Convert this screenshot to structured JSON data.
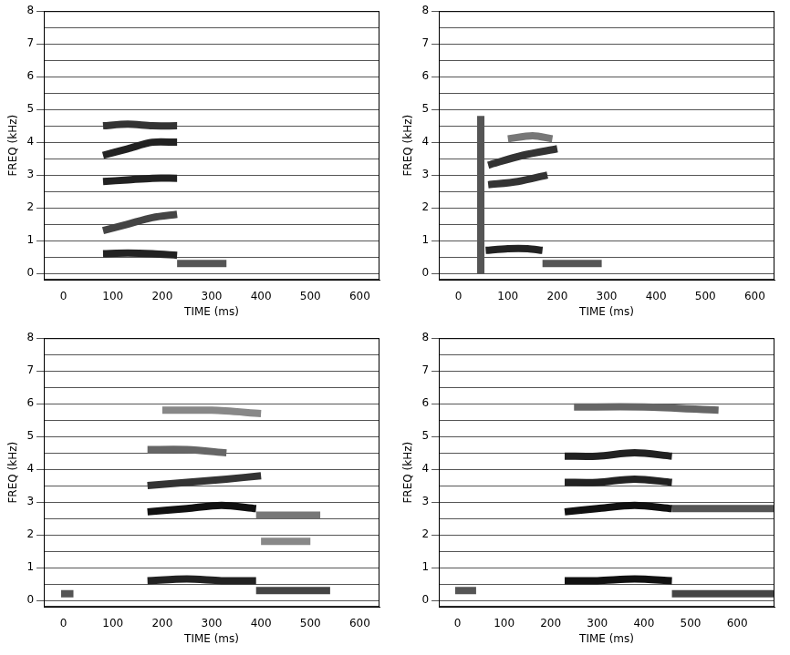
{
  "chart_data": [
    {
      "type": "line",
      "x_label": "TIME (ms)",
      "y_label": "FREQ (kHz)",
      "xlim": [
        -40,
        640
      ],
      "ylim": [
        -0.2,
        8
      ],
      "xticks": [
        0,
        100,
        200,
        300,
        400,
        500,
        600
      ],
      "yticks": [
        0,
        1,
        2,
        3,
        4,
        5,
        6,
        7,
        8
      ],
      "grid": true,
      "series": [
        {
          "color": "#222222",
          "x": [
            80,
            130,
            180,
            230
          ],
          "values": [
            0.6,
            0.62,
            0.6,
            0.55
          ]
        },
        {
          "color": "#555555",
          "x": [
            230,
            280,
            330
          ],
          "values": [
            0.3,
            0.3,
            0.3
          ]
        },
        {
          "color": "#444444",
          "x": [
            80,
            130,
            180,
            230
          ],
          "values": [
            1.3,
            1.5,
            1.7,
            1.8
          ]
        },
        {
          "color": "#222222",
          "x": [
            80,
            130,
            180,
            230
          ],
          "values": [
            2.8,
            2.85,
            2.9,
            2.9
          ]
        },
        {
          "color": "#222222",
          "x": [
            80,
            130,
            180,
            230
          ],
          "values": [
            3.6,
            3.8,
            4.0,
            4.0
          ]
        },
        {
          "color": "#333333",
          "x": [
            80,
            130,
            180,
            230
          ],
          "values": [
            4.5,
            4.55,
            4.5,
            4.5
          ]
        }
      ]
    },
    {
      "type": "line",
      "x_label": "TIME (ms)",
      "y_label": "FREQ (kHz)",
      "xlim": [
        -40,
        640
      ],
      "ylim": [
        -0.2,
        8
      ],
      "xticks": [
        0,
        100,
        200,
        300,
        400,
        500,
        600
      ],
      "yticks": [
        0,
        1,
        2,
        3,
        4,
        5,
        6,
        7,
        8
      ],
      "grid": true,
      "series": [
        {
          "color": "#555555",
          "x": [
            45,
            45
          ],
          "values": [
            0,
            4.8
          ]
        },
        {
          "color": "#222222",
          "x": [
            55,
            100,
            140,
            170
          ],
          "values": [
            0.7,
            0.75,
            0.75,
            0.7
          ]
        },
        {
          "color": "#555555",
          "x": [
            170,
            230,
            290
          ],
          "values": [
            0.3,
            0.3,
            0.3
          ]
        },
        {
          "color": "#333333",
          "x": [
            60,
            120,
            180
          ],
          "values": [
            2.7,
            2.8,
            3.0
          ]
        },
        {
          "color": "#333333",
          "x": [
            60,
            130,
            200
          ],
          "values": [
            3.3,
            3.6,
            3.8
          ]
        },
        {
          "color": "#777777",
          "x": [
            100,
            150,
            190
          ],
          "values": [
            4.1,
            4.2,
            4.1
          ]
        }
      ]
    },
    {
      "type": "line",
      "x_label": "TIME (ms)",
      "y_label": "FREQ (kHz)",
      "xlim": [
        -40,
        640
      ],
      "ylim": [
        -0.2,
        8
      ],
      "xticks": [
        0,
        100,
        200,
        300,
        400,
        500,
        600
      ],
      "yticks": [
        0,
        1,
        2,
        3,
        4,
        5,
        6,
        7,
        8
      ],
      "grid": true,
      "series": [
        {
          "color": "#555555",
          "x": [
            -5,
            20
          ],
          "values": [
            0.2,
            0.2
          ]
        },
        {
          "color": "#222222",
          "x": [
            170,
            250,
            320,
            390
          ],
          "values": [
            0.6,
            0.65,
            0.6,
            0.6
          ]
        },
        {
          "color": "#444444",
          "x": [
            390,
            460,
            540
          ],
          "values": [
            0.3,
            0.3,
            0.3
          ]
        },
        {
          "color": "#111111",
          "x": [
            170,
            250,
            320,
            390
          ],
          "values": [
            2.7,
            2.8,
            2.9,
            2.8
          ]
        },
        {
          "color": "#777777",
          "x": [
            390,
            450,
            520
          ],
          "values": [
            2.6,
            2.6,
            2.6
          ]
        },
        {
          "color": "#888888",
          "x": [
            400,
            450,
            500
          ],
          "values": [
            1.8,
            1.8,
            1.8
          ]
        },
        {
          "color": "#333333",
          "x": [
            170,
            250,
            330,
            400
          ],
          "values": [
            3.5,
            3.6,
            3.7,
            3.8
          ]
        },
        {
          "color": "#666666",
          "x": [
            170,
            250,
            330
          ],
          "values": [
            4.6,
            4.6,
            4.5
          ]
        },
        {
          "color": "#888888",
          "x": [
            200,
            300,
            400
          ],
          "values": [
            5.8,
            5.8,
            5.7
          ]
        }
      ]
    },
    {
      "type": "line",
      "x_label": "TIME (ms)",
      "y_label": "FREQ (kHz)",
      "xlim": [
        -40,
        680
      ],
      "ylim": [
        -0.2,
        8
      ],
      "xticks": [
        0,
        100,
        200,
        300,
        400,
        500,
        600
      ],
      "yticks": [
        0,
        1,
        2,
        3,
        4,
        5,
        6,
        7,
        8
      ],
      "grid": true,
      "series": [
        {
          "color": "#555555",
          "x": [
            -5,
            40
          ],
          "values": [
            0.3,
            0.3
          ]
        },
        {
          "color": "#111111",
          "x": [
            230,
            300,
            380,
            460
          ],
          "values": [
            0.6,
            0.6,
            0.65,
            0.6
          ]
        },
        {
          "color": "#444444",
          "x": [
            460,
            560,
            680
          ],
          "values": [
            0.2,
            0.2,
            0.2
          ]
        },
        {
          "color": "#111111",
          "x": [
            230,
            300,
            380,
            460
          ],
          "values": [
            2.7,
            2.8,
            2.9,
            2.8
          ]
        },
        {
          "color": "#555555",
          "x": [
            460,
            560,
            680
          ],
          "values": [
            2.8,
            2.8,
            2.8
          ]
        },
        {
          "color": "#222222",
          "x": [
            230,
            300,
            380,
            460
          ],
          "values": [
            3.6,
            3.6,
            3.7,
            3.6
          ]
        },
        {
          "color": "#222222",
          "x": [
            230,
            300,
            380,
            460
          ],
          "values": [
            4.4,
            4.4,
            4.5,
            4.4
          ]
        },
        {
          "color": "#666666",
          "x": [
            250,
            400,
            560
          ],
          "values": [
            5.9,
            5.9,
            5.8
          ]
        }
      ]
    }
  ]
}
